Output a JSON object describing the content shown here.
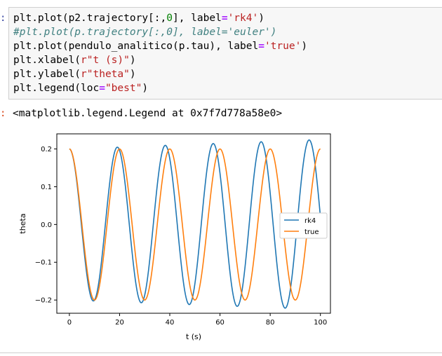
{
  "code_cell": {
    "prompt_colon": ":",
    "lines": [
      [
        {
          "t": "plt.plot(p2.trajectory[:,",
          "c": "fn"
        },
        {
          "t": "0",
          "c": "num"
        },
        {
          "t": "], label",
          "c": "fn"
        },
        {
          "t": "=",
          "c": "op"
        },
        {
          "t": "'rk4'",
          "c": "str"
        },
        {
          "t": ")",
          "c": "fn"
        }
      ],
      [
        {
          "t": "#plt.plot(p.trajectory[:,0], label='euler')",
          "c": "comment"
        }
      ],
      [
        {
          "t": "plt.plot(pendulo_analitico(p.tau), label",
          "c": "fn"
        },
        {
          "t": "=",
          "c": "op"
        },
        {
          "t": "'true'",
          "c": "str"
        },
        {
          "t": ")",
          "c": "fn"
        }
      ],
      [
        {
          "t": "plt.xlabel(",
          "c": "fn"
        },
        {
          "t": "r\"t (s)\"",
          "c": "str"
        },
        {
          "t": ")",
          "c": "fn"
        }
      ],
      [
        {
          "t": "plt.ylabel(",
          "c": "fn"
        },
        {
          "t": "r\"theta\"",
          "c": "str"
        },
        {
          "t": ")",
          "c": "fn"
        }
      ],
      [
        {
          "t": "plt.legend(loc",
          "c": "fn"
        },
        {
          "t": "=",
          "c": "op"
        },
        {
          "t": "\"best\"",
          "c": "str"
        },
        {
          "t": ")",
          "c": "fn"
        }
      ]
    ]
  },
  "output": {
    "colon": ":",
    "text": "<matplotlib.legend.Legend at 0x7f7d778a58e0>"
  },
  "colors": {
    "rk4": "#1f77b4",
    "true": "#ff7f0e"
  },
  "chart_data": {
    "type": "line",
    "xlabel": "t (s)",
    "ylabel": "theta",
    "xlim": [
      -5,
      104
    ],
    "ylim": [
      -0.235,
      0.24
    ],
    "xticks": [
      0,
      20,
      40,
      60,
      80,
      100
    ],
    "xtick_labels": [
      "0",
      "20",
      "40",
      "60",
      "80",
      "100"
    ],
    "yticks": [
      -0.2,
      -0.1,
      0.0,
      0.1,
      0.2
    ],
    "ytick_labels": [
      "−0.2",
      "−0.1",
      "0.0",
      "0.1",
      "0.2"
    ],
    "grid": false,
    "legend_loc": "center right",
    "series": [
      {
        "name": "rk4",
        "amplitude": 0.2,
        "amp_growth_per_s": 0.00025,
        "period": 19.1,
        "t_end": 100
      },
      {
        "name": "true",
        "amplitude": 0.2,
        "amp_growth_per_s": 0.0,
        "period": 20.0,
        "t_end": 100
      }
    ]
  }
}
